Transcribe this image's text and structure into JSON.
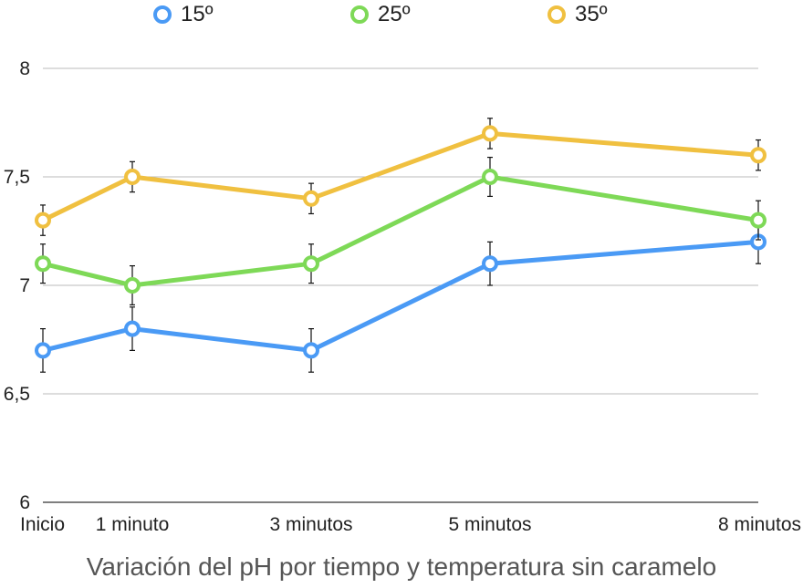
{
  "chart_data": {
    "type": "line",
    "title": "",
    "caption": "Variación del pH por tiempo y temperatura sin caramelo",
    "xlabel": "",
    "ylabel": "",
    "categories": [
      "Inicio",
      "1 minuto",
      "3 minutos",
      "5 minutos",
      "8 minutos"
    ],
    "x_positions": [
      0,
      1,
      3,
      5,
      8
    ],
    "ylim": [
      6,
      8
    ],
    "yticks": [
      6,
      6.5,
      7,
      7.5,
      8
    ],
    "ytick_labels": [
      "6",
      "6,5",
      "7",
      "7,5",
      "8"
    ],
    "grid": true,
    "legend_position": "top",
    "series": [
      {
        "name": "15º",
        "color": "#4a9af5",
        "values": [
          6.7,
          6.8,
          6.7,
          7.1,
          7.2
        ],
        "errors": [
          0.1,
          0.1,
          0.1,
          0.1,
          0.1
        ]
      },
      {
        "name": "25º",
        "color": "#7ed957",
        "values": [
          7.1,
          7.0,
          7.1,
          7.5,
          7.3
        ],
        "errors": [
          0.09,
          0.09,
          0.09,
          0.09,
          0.09
        ]
      },
      {
        "name": "35º",
        "color": "#f0c040",
        "values": [
          7.3,
          7.5,
          7.4,
          7.7,
          7.6
        ],
        "errors": [
          0.07,
          0.07,
          0.07,
          0.07,
          0.07
        ]
      }
    ]
  }
}
